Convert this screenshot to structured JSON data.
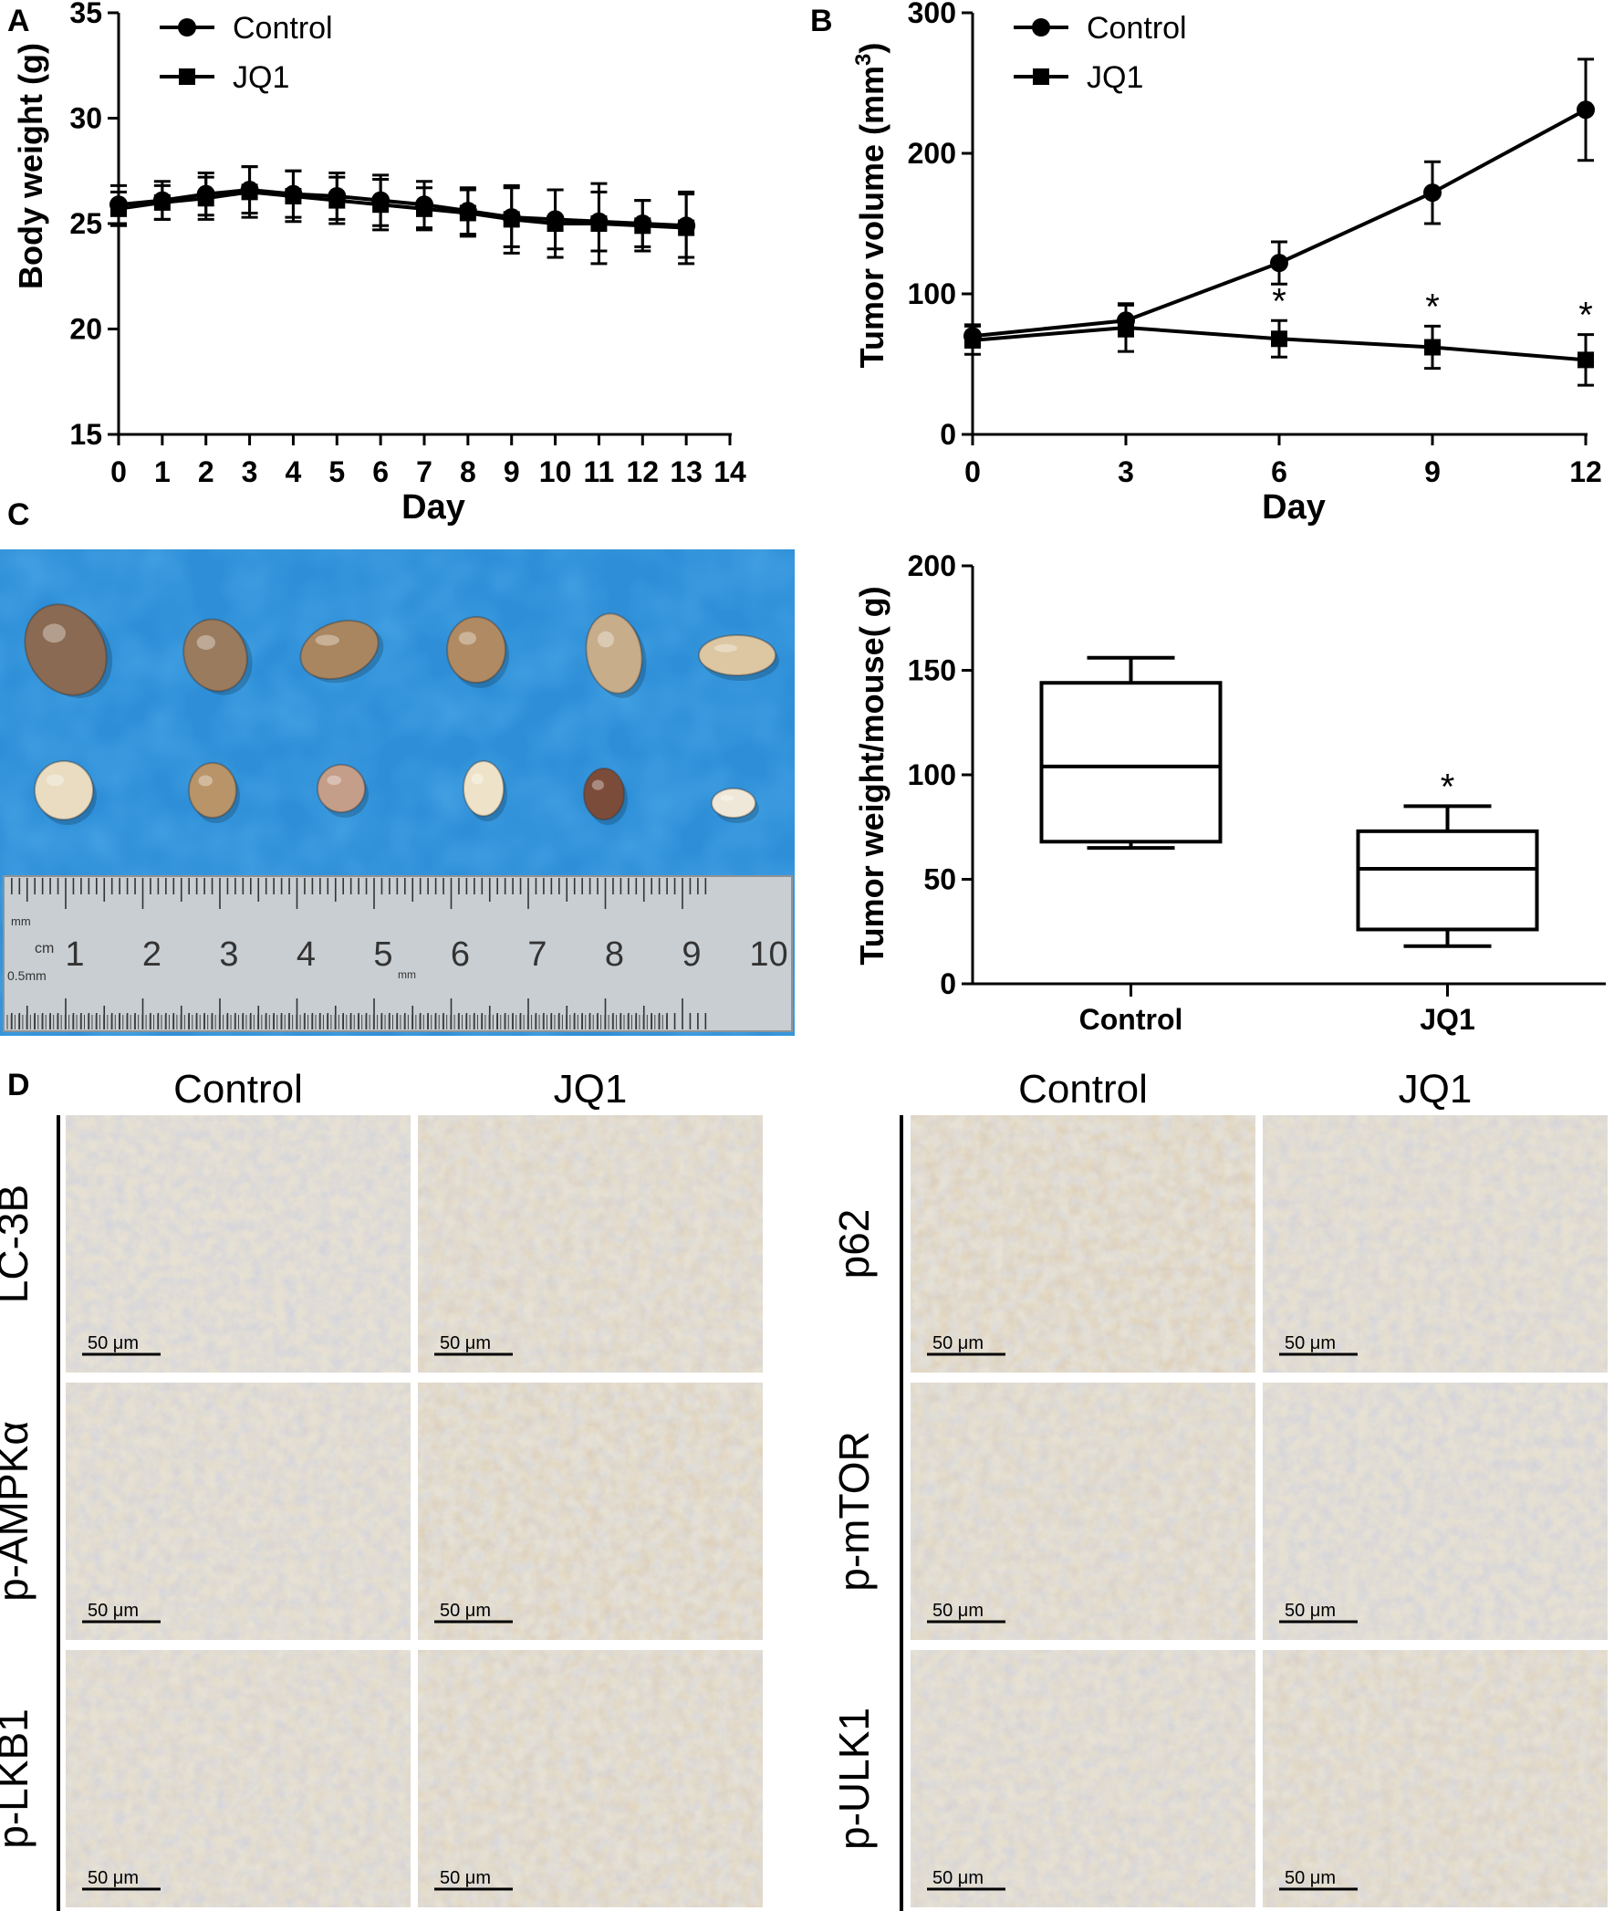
{
  "panel_labels": {
    "a": "A",
    "b": "B",
    "c": "C",
    "d": "D"
  },
  "chart_data": [
    {
      "id": "A",
      "type": "line",
      "title": "",
      "xlabel": "Day",
      "ylabel": "Body weight (g)",
      "xlim": [
        0,
        14
      ],
      "ylim": [
        15,
        35
      ],
      "x_ticks": [
        "0",
        "1",
        "2",
        "3",
        "4",
        "5",
        "6",
        "7",
        "8",
        "9",
        "10",
        "11",
        "12",
        "13",
        "14"
      ],
      "y_ticks": [
        "15",
        "20",
        "25",
        "30",
        "35"
      ],
      "legend_position": "top-left",
      "grid": false,
      "series": [
        {
          "name": "Control",
          "marker": "circle",
          "x": [
            0,
            1,
            2,
            3,
            4,
            5,
            6,
            7,
            8,
            9,
            10,
            11,
            12,
            13
          ],
          "y": [
            25.9,
            26.1,
            26.4,
            26.6,
            26.4,
            26.3,
            26.1,
            25.9,
            25.6,
            25.3,
            25.2,
            25.1,
            25.0,
            24.9
          ],
          "err": [
            0.9,
            0.9,
            1.0,
            1.1,
            1.1,
            1.1,
            1.2,
            1.1,
            1.1,
            1.4,
            1.4,
            1.4,
            1.1,
            1.5
          ]
        },
        {
          "name": "JQ1",
          "marker": "square",
          "x": [
            0,
            1,
            2,
            3,
            4,
            5,
            6,
            7,
            8,
            9,
            10,
            11,
            12,
            13
          ],
          "y": [
            25.7,
            26.0,
            26.2,
            26.5,
            26.3,
            26.1,
            25.9,
            25.7,
            25.5,
            25.2,
            25.0,
            25.0,
            24.9,
            24.8
          ],
          "err": [
            0.8,
            0.8,
            1.0,
            1.2,
            1.2,
            1.1,
            1.2,
            1.0,
            1.1,
            1.6,
            1.6,
            1.9,
            1.2,
            1.7
          ]
        }
      ]
    },
    {
      "id": "B",
      "type": "line",
      "title": "",
      "xlabel": "Day",
      "ylabel": "Tumor volume (mm",
      "ylabel_sup": "3",
      "ylabel_end": ")",
      "xlim": [
        0,
        12
      ],
      "ylim": [
        0,
        300
      ],
      "x_ticks": [
        "0",
        "3",
        "6",
        "9",
        "12"
      ],
      "y_ticks": [
        "0",
        "100",
        "200",
        "300"
      ],
      "legend_position": "top-left",
      "grid": false,
      "significance_marker": "*",
      "significant_x": [
        6,
        9,
        12
      ],
      "series": [
        {
          "name": "Control",
          "marker": "circle",
          "x": [
            0,
            3,
            6,
            9,
            12
          ],
          "y": [
            70,
            81,
            122,
            172,
            231
          ],
          "err": [
            8,
            11,
            15,
            22,
            36
          ]
        },
        {
          "name": "JQ1",
          "marker": "square",
          "x": [
            0,
            3,
            6,
            9,
            12
          ],
          "y": [
            67,
            76,
            68,
            62,
            53
          ],
          "err": [
            10,
            17,
            13,
            15,
            18
          ]
        }
      ]
    },
    {
      "id": "C-box",
      "type": "box",
      "title": "",
      "xlabel": "",
      "ylabel": "Tumor weight/mouse( g)",
      "ylim": [
        0,
        200
      ],
      "y_ticks": [
        "0",
        "50",
        "100",
        "150",
        "200"
      ],
      "categories": [
        "Control",
        "JQ1"
      ],
      "boxes": [
        {
          "name": "Control",
          "min": 65,
          "q1": 68,
          "median": 104,
          "q3": 144,
          "max": 156
        },
        {
          "name": "JQ1",
          "min": 18,
          "q1": 26,
          "median": 55,
          "q3": 73,
          "max": 85
        }
      ],
      "significance_marker": "*",
      "significant_categories": [
        "JQ1"
      ]
    }
  ],
  "photo": {
    "ruler_numbers": [
      "1",
      "2",
      "3",
      "4",
      "5",
      "6",
      "7",
      "8",
      "9",
      "10"
    ],
    "ruler_unit_mm": "mm",
    "ruler_unit_cm": "cm",
    "ruler_unit_05mm": "0.5mm",
    "ruler_unit_mm_mid": "mm",
    "colors": {
      "background": "#2e8fd8",
      "ruler": "#c9ced2",
      "tumor_dark": "#8a6a52",
      "tumor_light": "#e9dcc0"
    }
  },
  "ihc": {
    "left_headers": [
      "Control",
      "JQ1"
    ],
    "right_headers": [
      "Control",
      "JQ1"
    ],
    "left_rows": [
      "LC-3B",
      "p-AMPKα",
      "p-LKB1"
    ],
    "right_rows": [
      "p62",
      "p-mTOR",
      "p-ULK1"
    ],
    "scale_bar_label": "50 μm",
    "colors": {
      "blue_stain": "#bcc2da",
      "brown_stain": "#d3b48c"
    }
  }
}
